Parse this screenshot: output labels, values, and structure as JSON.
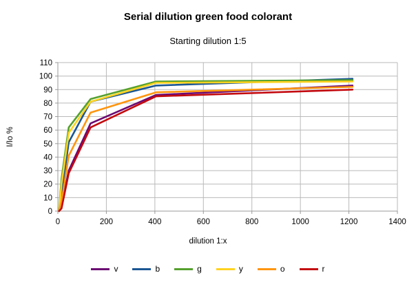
{
  "chart_data": {
    "type": "line",
    "title": "Serial dilution green food colorant",
    "subtitle": "Starting dilution 1:5",
    "xlabel": "dilution 1:x",
    "ylabel": "I/Io %",
    "x": [
      5,
      15,
      45,
      135,
      405,
      1215
    ],
    "series": [
      {
        "name": "v",
        "color": "#6B0A72",
        "values": [
          0,
          3,
          30,
          65,
          86,
          93
        ]
      },
      {
        "name": "b",
        "color": "#1B5693",
        "values": [
          0,
          13,
          51,
          81,
          93,
          98
        ]
      },
      {
        "name": "g",
        "color": "#55A02E",
        "values": [
          1,
          24,
          62,
          83,
          96,
          97
        ]
      },
      {
        "name": "y",
        "color": "#FFD320",
        "values": [
          0,
          20,
          58,
          81,
          95,
          96
        ]
      },
      {
        "name": "o",
        "color": "#FF950E",
        "values": [
          0,
          7,
          41,
          73,
          88,
          92
        ]
      },
      {
        "name": "r",
        "color": "#C30A0F",
        "values": [
          0,
          2,
          28,
          62,
          85,
          90
        ]
      }
    ],
    "xlim": [
      0,
      1400
    ],
    "ylim": [
      0,
      110
    ],
    "x_ticks": [
      0,
      200,
      400,
      600,
      800,
      1000,
      1200,
      1400
    ],
    "y_ticks": [
      0,
      10,
      20,
      30,
      40,
      50,
      60,
      70,
      80,
      90,
      100,
      110
    ],
    "grid": true,
    "legend_position": "bottom",
    "grid_color": "#b9b9b9",
    "axis_color": "#999999",
    "text_color": "#000000",
    "background": "#ffffff"
  }
}
